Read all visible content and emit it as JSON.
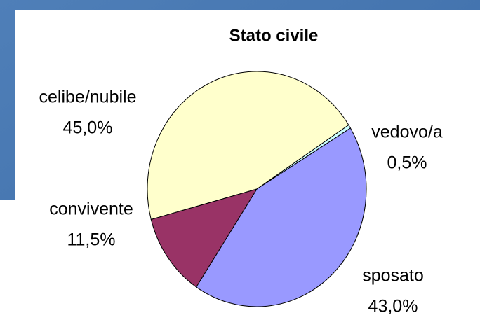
{
  "chart_data": {
    "type": "pie",
    "title": "Stato civile",
    "categories": [
      "celibe/nubile",
      "vedovo/a",
      "sposato",
      "convivente"
    ],
    "values": [
      45,
      0.5,
      43,
      11.5
    ],
    "value_labels": [
      "45,0%",
      "0,5%",
      "43,0%",
      "11,5%"
    ],
    "colors": [
      "#ffffcc",
      "#ccffff",
      "#9999ff",
      "#993366"
    ]
  }
}
